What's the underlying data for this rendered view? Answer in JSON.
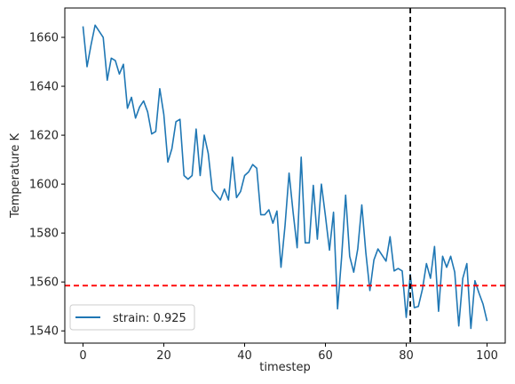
{
  "chart_data": {
    "type": "line",
    "xlabel": "timestep",
    "ylabel": "Temperature K",
    "xlim": [
      -4.5,
      104.5
    ],
    "ylim": [
      1535.0,
      1672.0
    ],
    "xticks": [
      0,
      20,
      40,
      60,
      80,
      100
    ],
    "yticks": [
      1540,
      1560,
      1580,
      1600,
      1620,
      1640,
      1660
    ],
    "grid": false,
    "legend_position": "lower-left",
    "series": [
      {
        "name": "strain: 0.925",
        "color": "#1f77b4",
        "x": [
          0,
          1,
          2,
          3,
          4,
          5,
          6,
          7,
          8,
          9,
          10,
          11,
          12,
          13,
          14,
          15,
          16,
          17,
          18,
          19,
          20,
          21,
          22,
          23,
          24,
          25,
          26,
          27,
          28,
          29,
          30,
          31,
          32,
          33,
          34,
          35,
          36,
          37,
          38,
          39,
          40,
          41,
          42,
          43,
          44,
          45,
          46,
          47,
          48,
          49,
          50,
          51,
          52,
          53,
          54,
          55,
          56,
          57,
          58,
          59,
          60,
          61,
          62,
          63,
          64,
          65,
          66,
          67,
          68,
          69,
          70,
          71,
          72,
          73,
          74,
          75,
          76,
          77,
          78,
          79,
          80,
          81,
          82,
          83,
          84,
          85,
          86,
          87,
          88,
          89,
          90,
          91,
          92,
          93,
          94,
          95,
          96,
          97,
          98,
          99,
          100
        ],
        "y": [
          1664.5,
          1648,
          1657,
          1665,
          1662.5,
          1660,
          1642.5,
          1651.5,
          1650.5,
          1645,
          1649,
          1631,
          1635.5,
          1627,
          1631.5,
          1634,
          1629.5,
          1620.5,
          1621.5,
          1639,
          1628.5,
          1609,
          1614.5,
          1625.5,
          1626.5,
          1603.5,
          1602,
          1603.5,
          1622.5,
          1603.5,
          1620,
          1612.5,
          1597.5,
          1595.5,
          1593.5,
          1598,
          1593.5,
          1611,
          1594.5,
          1597,
          1603.5,
          1605,
          1608,
          1606.5,
          1587.5,
          1587.5,
          1589.5,
          1584,
          1589,
          1566,
          1583,
          1604.5,
          1588.5,
          1574,
          1611,
          1576,
          1576,
          1599.5,
          1577.5,
          1600,
          1587,
          1573,
          1588.5,
          1549,
          1570,
          1595.5,
          1570.5,
          1564,
          1573.5,
          1591.5,
          1572,
          1556.5,
          1569,
          1573.5,
          1571,
          1568.5,
          1578.5,
          1564.5,
          1565.5,
          1564.5,
          1545.5,
          1563,
          1549.5,
          1550,
          1557,
          1567.5,
          1561.5,
          1574.5,
          1548,
          1570.5,
          1566,
          1570.5,
          1564,
          1542,
          1561.5,
          1567.5,
          1541,
          1560.5,
          1555.5,
          1551,
          1544
        ]
      }
    ],
    "reference_lines": [
      {
        "orientation": "vertical",
        "value": 81,
        "color": "#000000",
        "style": "dashed"
      },
      {
        "orientation": "horizontal",
        "value": 1558.5,
        "color": "#ff0000",
        "style": "dashed"
      }
    ]
  }
}
